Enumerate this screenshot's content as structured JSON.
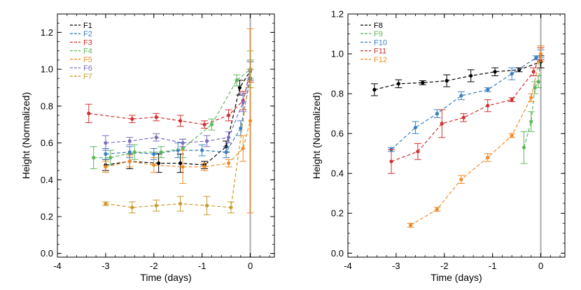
{
  "chart_data": [
    {
      "type": "scatter",
      "xlabel": "Time (days)",
      "ylabel": "Height (Normalized)",
      "xlim": [
        -4,
        0.5
      ],
      "ylim": [
        -0.02,
        1.3
      ],
      "xticks": [
        -4,
        -3,
        -2,
        -1,
        0
      ],
      "yticks": [
        0.0,
        0.2,
        0.4,
        0.6,
        0.8,
        1.0,
        1.2
      ],
      "xtick_labels": [
        "-4",
        "-3",
        "-2",
        "-1",
        "0"
      ],
      "ytick_labels": [
        "0.0",
        "0.2",
        "0.4",
        "0.6",
        "0.8",
        "1.0",
        "1.2"
      ],
      "vertical_line_x": 0,
      "vertical_line_color": "#b0b0b0",
      "legend_position": "top-left",
      "series": [
        {
          "name": "F1",
          "color": "#000000",
          "x": [
            -3.0,
            -2.5,
            -1.9,
            -1.45,
            -0.95,
            -0.5,
            -0.22,
            0.0
          ],
          "y": [
            0.48,
            0.5,
            0.49,
            0.49,
            0.48,
            0.58,
            0.9,
            0.99
          ],
          "err": [
            0.03,
            0.04,
            0.05,
            0.05,
            0.02,
            0.03,
            0.04,
            0.05
          ]
        },
        {
          "name": "F2",
          "color": "#3a7fc1",
          "x": [
            -3.0,
            -2.5,
            -2.0,
            -1.5,
            -1.0,
            -0.5,
            -0.2,
            0.0
          ],
          "y": [
            0.54,
            0.55,
            0.54,
            0.56,
            0.56,
            0.55,
            0.68,
            0.95
          ],
          "err": [
            0.03,
            0.03,
            0.03,
            0.04,
            0.03,
            0.03,
            0.04,
            0.05
          ]
        },
        {
          "name": "F3",
          "color": "#d03030",
          "x": [
            -3.35,
            -2.45,
            -1.95,
            -1.45,
            -0.95,
            -0.45,
            -0.15,
            0.0
          ],
          "y": [
            0.76,
            0.73,
            0.74,
            0.72,
            0.7,
            0.75,
            0.83,
            0.99
          ],
          "err": [
            0.05,
            0.02,
            0.02,
            0.03,
            0.02,
            0.03,
            0.05,
            0.06
          ]
        },
        {
          "name": "F4",
          "color": "#5cb85c",
          "x": [
            -3.25,
            -2.9,
            -2.4,
            -1.85,
            -1.4,
            -0.8,
            -0.28,
            0.0
          ],
          "y": [
            0.52,
            0.52,
            0.55,
            0.55,
            0.57,
            0.7,
            0.94,
            1.0
          ],
          "err": [
            0.06,
            0.04,
            0.04,
            0.03,
            0.05,
            0.03,
            0.03,
            0.05
          ]
        },
        {
          "name": "F5",
          "color": "#f08c28",
          "x": [
            -3.0,
            -2.5,
            -2.0,
            -1.4,
            -0.95,
            -0.45,
            -0.15,
            0.0
          ],
          "y": [
            0.47,
            0.5,
            0.48,
            0.47,
            0.47,
            0.49,
            0.57,
            0.72
          ],
          "err": [
            0.03,
            0.03,
            0.04,
            0.09,
            0.02,
            0.02,
            0.07,
            0.5
          ]
        },
        {
          "name": "F6",
          "color": "#7a6ec0",
          "x": [
            -3.0,
            -2.5,
            -1.95,
            -1.4,
            -0.9,
            -0.45,
            -0.15,
            0.0
          ],
          "y": [
            0.6,
            0.61,
            0.63,
            0.6,
            0.61,
            0.63,
            0.82,
            0.99
          ],
          "err": [
            0.04,
            0.02,
            0.02,
            0.02,
            0.03,
            0.03,
            0.05,
            0.05
          ]
        },
        {
          "name": "F7",
          "color": "#c89b2a",
          "x": [
            -3.0,
            -2.45,
            -1.95,
            -1.45,
            -0.9,
            -0.4,
            0.0
          ],
          "y": [
            0.27,
            0.25,
            0.26,
            0.27,
            0.26,
            0.25,
            1.0
          ],
          "err": [
            0.01,
            0.03,
            0.03,
            0.04,
            0.05,
            0.03,
            0.1
          ]
        }
      ]
    },
    {
      "type": "scatter",
      "xlabel": "Time (days)",
      "ylabel": "Height (Normalized)",
      "xlim": [
        -4,
        0.5
      ],
      "ylim": [
        -0.02,
        1.2
      ],
      "xticks": [
        -4,
        -3,
        -2,
        -1,
        0
      ],
      "yticks": [
        0.0,
        0.2,
        0.4,
        0.6,
        0.8,
        1.0,
        1.2
      ],
      "xtick_labels": [
        "-4",
        "-3",
        "-2",
        "-1",
        "0"
      ],
      "ytick_labels": [
        "0.0",
        "0.2",
        "0.4",
        "0.6",
        "0.8",
        "1.0",
        "1.2"
      ],
      "vertical_line_x": 0,
      "vertical_line_color": "#b0b0b0",
      "legend_position": "top-left",
      "series": [
        {
          "name": "F8",
          "color": "#000000",
          "x": [
            -3.45,
            -2.95,
            -2.45,
            -1.95,
            -1.45,
            -0.95,
            -0.45,
            0.0
          ],
          "y": [
            0.82,
            0.85,
            0.855,
            0.865,
            0.89,
            0.91,
            0.92,
            0.96
          ],
          "err": [
            0.03,
            0.02,
            0.01,
            0.03,
            0.03,
            0.02,
            0.01,
            0.03
          ]
        },
        {
          "name": "F9",
          "color": "#5cb85c",
          "x": [
            -0.35,
            -0.2,
            -0.12,
            -0.05,
            0.0
          ],
          "y": [
            0.53,
            0.66,
            0.83,
            0.86,
            1.0
          ],
          "err": [
            0.08,
            0.05,
            0.03,
            0.03,
            0.04
          ]
        },
        {
          "name": "F10",
          "color": "#3a7fc1",
          "x": [
            -3.1,
            -2.6,
            -2.15,
            -1.65,
            -1.1,
            -0.6,
            -0.1,
            0.0
          ],
          "y": [
            0.52,
            0.63,
            0.7,
            0.79,
            0.82,
            0.9,
            0.98,
            1.0
          ],
          "err": [
            0.01,
            0.03,
            0.02,
            0.02,
            0.01,
            0.03,
            0.01,
            0.02
          ]
        },
        {
          "name": "F11",
          "color": "#d03030",
          "x": [
            -3.1,
            -2.55,
            -2.05,
            -1.6,
            -1.1,
            -0.6,
            -0.15,
            0.0
          ],
          "y": [
            0.46,
            0.51,
            0.65,
            0.68,
            0.74,
            0.77,
            0.91,
            1.0
          ],
          "err": [
            0.06,
            0.04,
            0.07,
            0.02,
            0.03,
            0.01,
            0.02,
            0.03
          ]
        },
        {
          "name": "F12",
          "color": "#f08c28",
          "x": [
            -2.7,
            -2.15,
            -1.65,
            -1.1,
            -0.6,
            -0.2,
            0.0
          ],
          "y": [
            0.14,
            0.22,
            0.37,
            0.48,
            0.59,
            0.78,
            1.0
          ],
          "err": [
            0.01,
            0.01,
            0.02,
            0.02,
            0.01,
            0.02,
            0.04
          ]
        }
      ]
    }
  ]
}
